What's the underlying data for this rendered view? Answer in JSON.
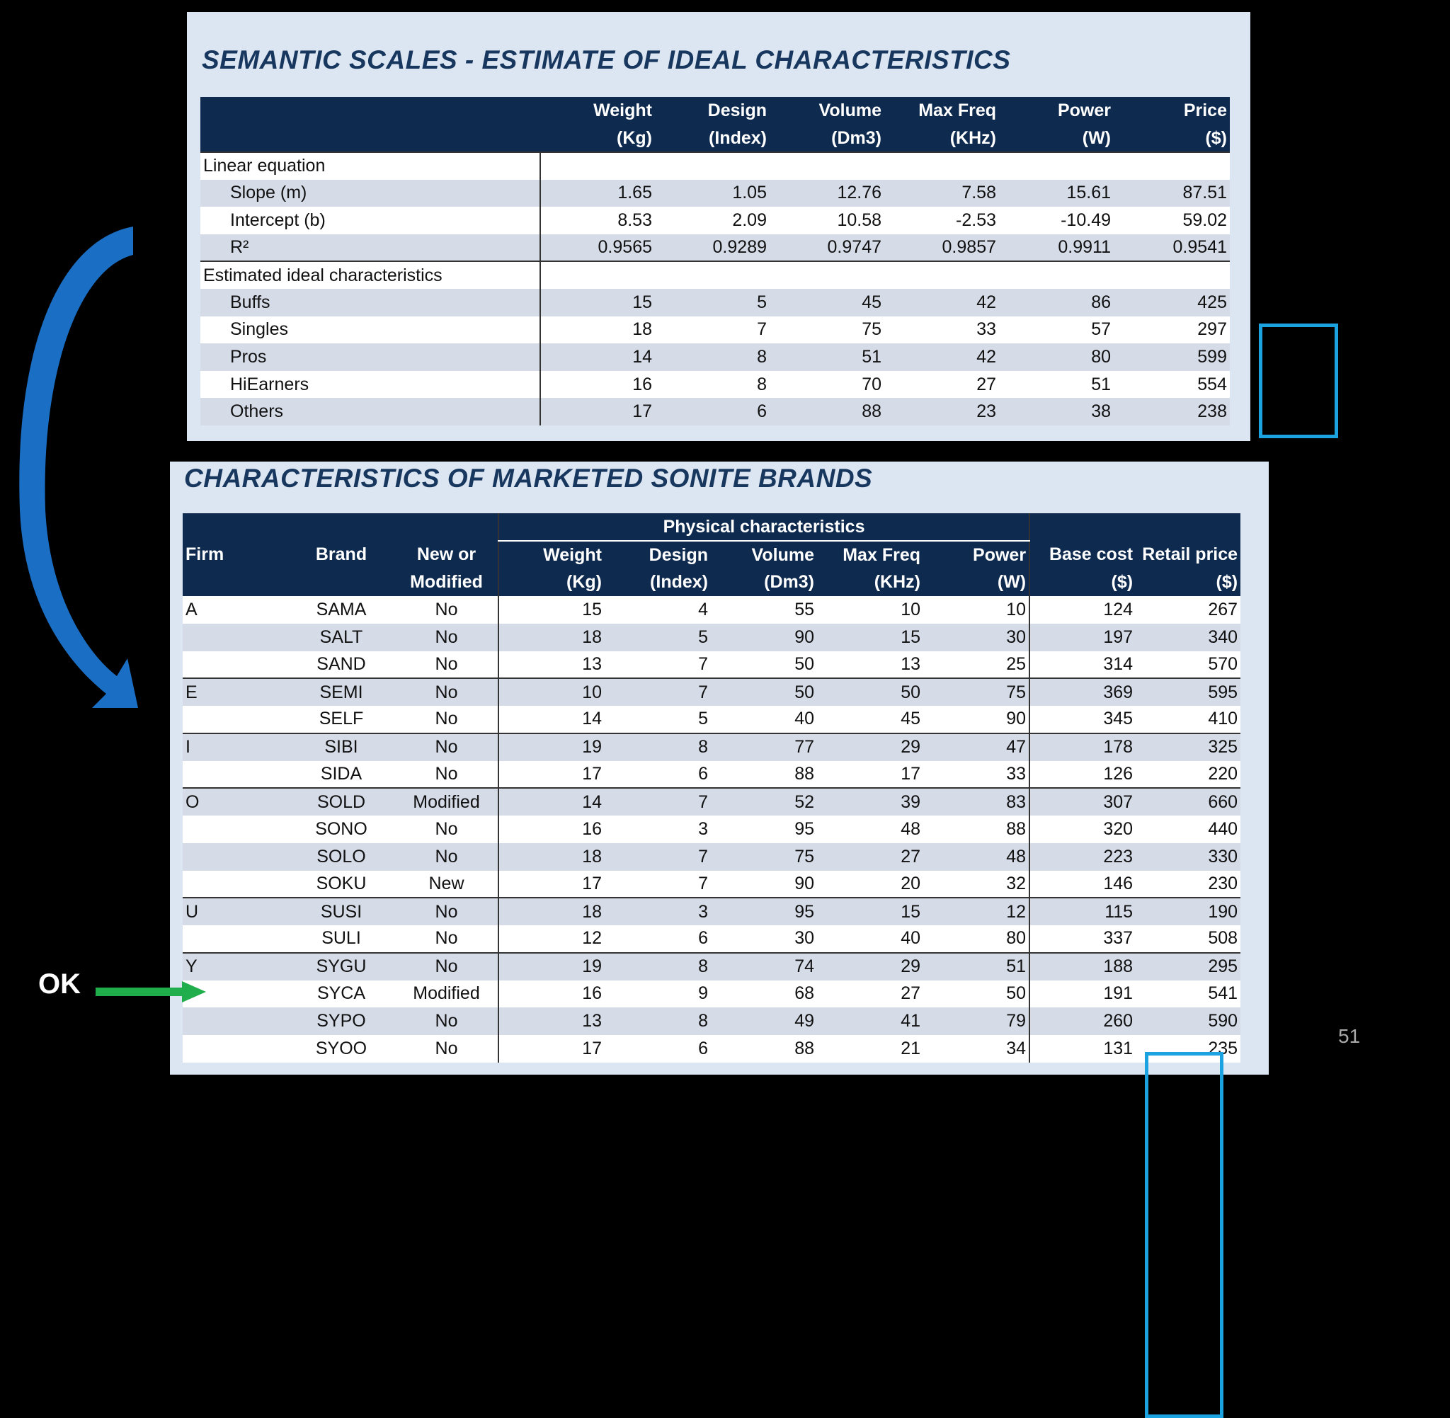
{
  "table1": {
    "title": "SEMANTIC SCALES - ESTIMATE OF IDEAL CHARACTERISTICS",
    "columns": [
      {
        "line1": "Weight",
        "line2": "(Kg)"
      },
      {
        "line1": "Design",
        "line2": "(Index)"
      },
      {
        "line1": "Volume",
        "line2": "(Dm3)"
      },
      {
        "line1": "Max Freq",
        "line2": "(KHz)"
      },
      {
        "line1": "Power",
        "line2": "(W)"
      },
      {
        "line1": "Price",
        "line2": "($)"
      }
    ],
    "section1_label": "Linear equation",
    "section1_rows": [
      {
        "label": "Slope (m)",
        "values": [
          "1.65",
          "1.05",
          "12.76",
          "7.58",
          "15.61",
          "87.51"
        ]
      },
      {
        "label": "Intercept (b)",
        "values": [
          "8.53",
          "2.09",
          "10.58",
          "-2.53",
          "-10.49",
          "59.02"
        ]
      },
      {
        "label": "R²",
        "values": [
          "0.9565",
          "0.9289",
          "0.9747",
          "0.9857",
          "0.9911",
          "0.9541"
        ]
      }
    ],
    "section2_label": "Estimated ideal characteristics",
    "section2_rows": [
      {
        "label": "Buffs",
        "values": [
          "15",
          "5",
          "45",
          "42",
          "86",
          "425"
        ]
      },
      {
        "label": "Singles",
        "values": [
          "18",
          "7",
          "75",
          "33",
          "57",
          "297"
        ]
      },
      {
        "label": "Pros",
        "values": [
          "14",
          "8",
          "51",
          "42",
          "80",
          "599"
        ]
      },
      {
        "label": "HiEarners",
        "values": [
          "16",
          "8",
          "70",
          "27",
          "51",
          "554"
        ]
      },
      {
        "label": "Others",
        "values": [
          "17",
          "6",
          "88",
          "23",
          "38",
          "238"
        ]
      }
    ]
  },
  "table2": {
    "title": "CHARACTERISTICS OF MARKETED SONITE BRANDS",
    "group_header": "Physical characteristics",
    "headers": {
      "firm": "Firm",
      "brand": "Brand",
      "new1": "New or",
      "new2": "Modified",
      "weight1": "Weight",
      "weight2": "(Kg)",
      "design1": "Design",
      "design2": "(Index)",
      "volume1": "Volume",
      "volume2": "(Dm3)",
      "freq1": "Max Freq",
      "freq2": "(KHz)",
      "power1": "Power",
      "power2": "(W)",
      "cost1": "Base cost",
      "cost2": "($)",
      "retail1": "Retail price",
      "retail2": "($)"
    },
    "rows": [
      {
        "firm": "A",
        "brand": "SAMA",
        "status": "No",
        "weight": "15",
        "design": "4",
        "volume": "55",
        "freq": "10",
        "power": "10",
        "cost": "124",
        "retail": "267"
      },
      {
        "firm": "",
        "brand": "SALT",
        "status": "No",
        "weight": "18",
        "design": "5",
        "volume": "90",
        "freq": "15",
        "power": "30",
        "cost": "197",
        "retail": "340"
      },
      {
        "firm": "",
        "brand": "SAND",
        "status": "No",
        "weight": "13",
        "design": "7",
        "volume": "50",
        "freq": "13",
        "power": "25",
        "cost": "314",
        "retail": "570"
      },
      {
        "firm": "E",
        "brand": "SEMI",
        "status": "No",
        "weight": "10",
        "design": "7",
        "volume": "50",
        "freq": "50",
        "power": "75",
        "cost": "369",
        "retail": "595"
      },
      {
        "firm": "",
        "brand": "SELF",
        "status": "No",
        "weight": "14",
        "design": "5",
        "volume": "40",
        "freq": "45",
        "power": "90",
        "cost": "345",
        "retail": "410"
      },
      {
        "firm": "I",
        "brand": "SIBI",
        "status": "No",
        "weight": "19",
        "design": "8",
        "volume": "77",
        "freq": "29",
        "power": "47",
        "cost": "178",
        "retail": "325"
      },
      {
        "firm": "",
        "brand": "SIDA",
        "status": "No",
        "weight": "17",
        "design": "6",
        "volume": "88",
        "freq": "17",
        "power": "33",
        "cost": "126",
        "retail": "220"
      },
      {
        "firm": "O",
        "brand": "SOLD",
        "status": "Modified",
        "weight": "14",
        "design": "7",
        "volume": "52",
        "freq": "39",
        "power": "83",
        "cost": "307",
        "retail": "660"
      },
      {
        "firm": "",
        "brand": "SONO",
        "status": "No",
        "weight": "16",
        "design": "3",
        "volume": "95",
        "freq": "48",
        "power": "88",
        "cost": "320",
        "retail": "440"
      },
      {
        "firm": "",
        "brand": "SOLO",
        "status": "No",
        "weight": "18",
        "design": "7",
        "volume": "75",
        "freq": "27",
        "power": "48",
        "cost": "223",
        "retail": "330"
      },
      {
        "firm": "",
        "brand": "SOKU",
        "status": "New",
        "weight": "17",
        "design": "7",
        "volume": "90",
        "freq": "20",
        "power": "32",
        "cost": "146",
        "retail": "230"
      },
      {
        "firm": "U",
        "brand": "SUSI",
        "status": "No",
        "weight": "18",
        "design": "3",
        "volume": "95",
        "freq": "15",
        "power": "12",
        "cost": "115",
        "retail": "190"
      },
      {
        "firm": "",
        "brand": "SULI",
        "status": "No",
        "weight": "12",
        "design": "6",
        "volume": "30",
        "freq": "40",
        "power": "80",
        "cost": "337",
        "retail": "508"
      },
      {
        "firm": "Y",
        "brand": "SYGU",
        "status": "No",
        "weight": "19",
        "design": "8",
        "volume": "74",
        "freq": "29",
        "power": "51",
        "cost": "188",
        "retail": "295"
      },
      {
        "firm": "",
        "brand": "SYCA",
        "status": "Modified",
        "weight": "16",
        "design": "9",
        "volume": "68",
        "freq": "27",
        "power": "50",
        "cost": "191",
        "retail": "541"
      },
      {
        "firm": "",
        "brand": "SYPO",
        "status": "No",
        "weight": "13",
        "design": "8",
        "volume": "49",
        "freq": "41",
        "power": "79",
        "cost": "260",
        "retail": "590"
      },
      {
        "firm": "",
        "brand": "SYOO",
        "status": "No",
        "weight": "17",
        "design": "6",
        "volume": "88",
        "freq": "21",
        "power": "34",
        "cost": "131",
        "retail": "235"
      }
    ]
  },
  "annotations": {
    "ok_label": "OK",
    "page_number": "51",
    "highlight_color": "#1aa3e0",
    "arrow_color": "#1a6fc4",
    "ok_arrow_color": "#1fae4b"
  }
}
